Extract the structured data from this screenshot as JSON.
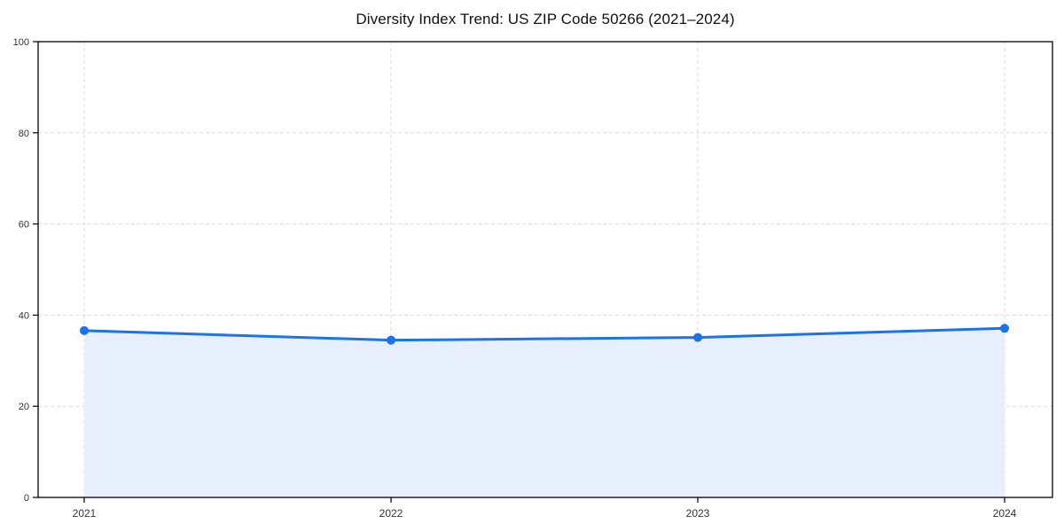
{
  "chart_data": {
    "type": "line",
    "title": "Diversity Index Trend: US ZIP Code 50266 (2021–2024)",
    "x": [
      "2021",
      "2022",
      "2023",
      "2024"
    ],
    "series": [
      {
        "name": "Diversity Index",
        "values": [
          36.6,
          34.5,
          35.1,
          37.1
        ]
      }
    ],
    "xlabel": "",
    "ylabel": "",
    "ylim": [
      0,
      100
    ],
    "yticks": [
      0,
      20,
      40,
      60,
      80,
      100
    ],
    "grid": "dashed, horizontal and vertical at ticks",
    "legend": "none",
    "area_fill": true,
    "colors": {
      "line": "#1a73e8",
      "marker": "#1a73e8",
      "area": "#e7effc",
      "grid": "#dddddd",
      "spine": "#000000",
      "tick_text": "#333333",
      "title_text": "#111111",
      "background": "#ffffff"
    }
  }
}
